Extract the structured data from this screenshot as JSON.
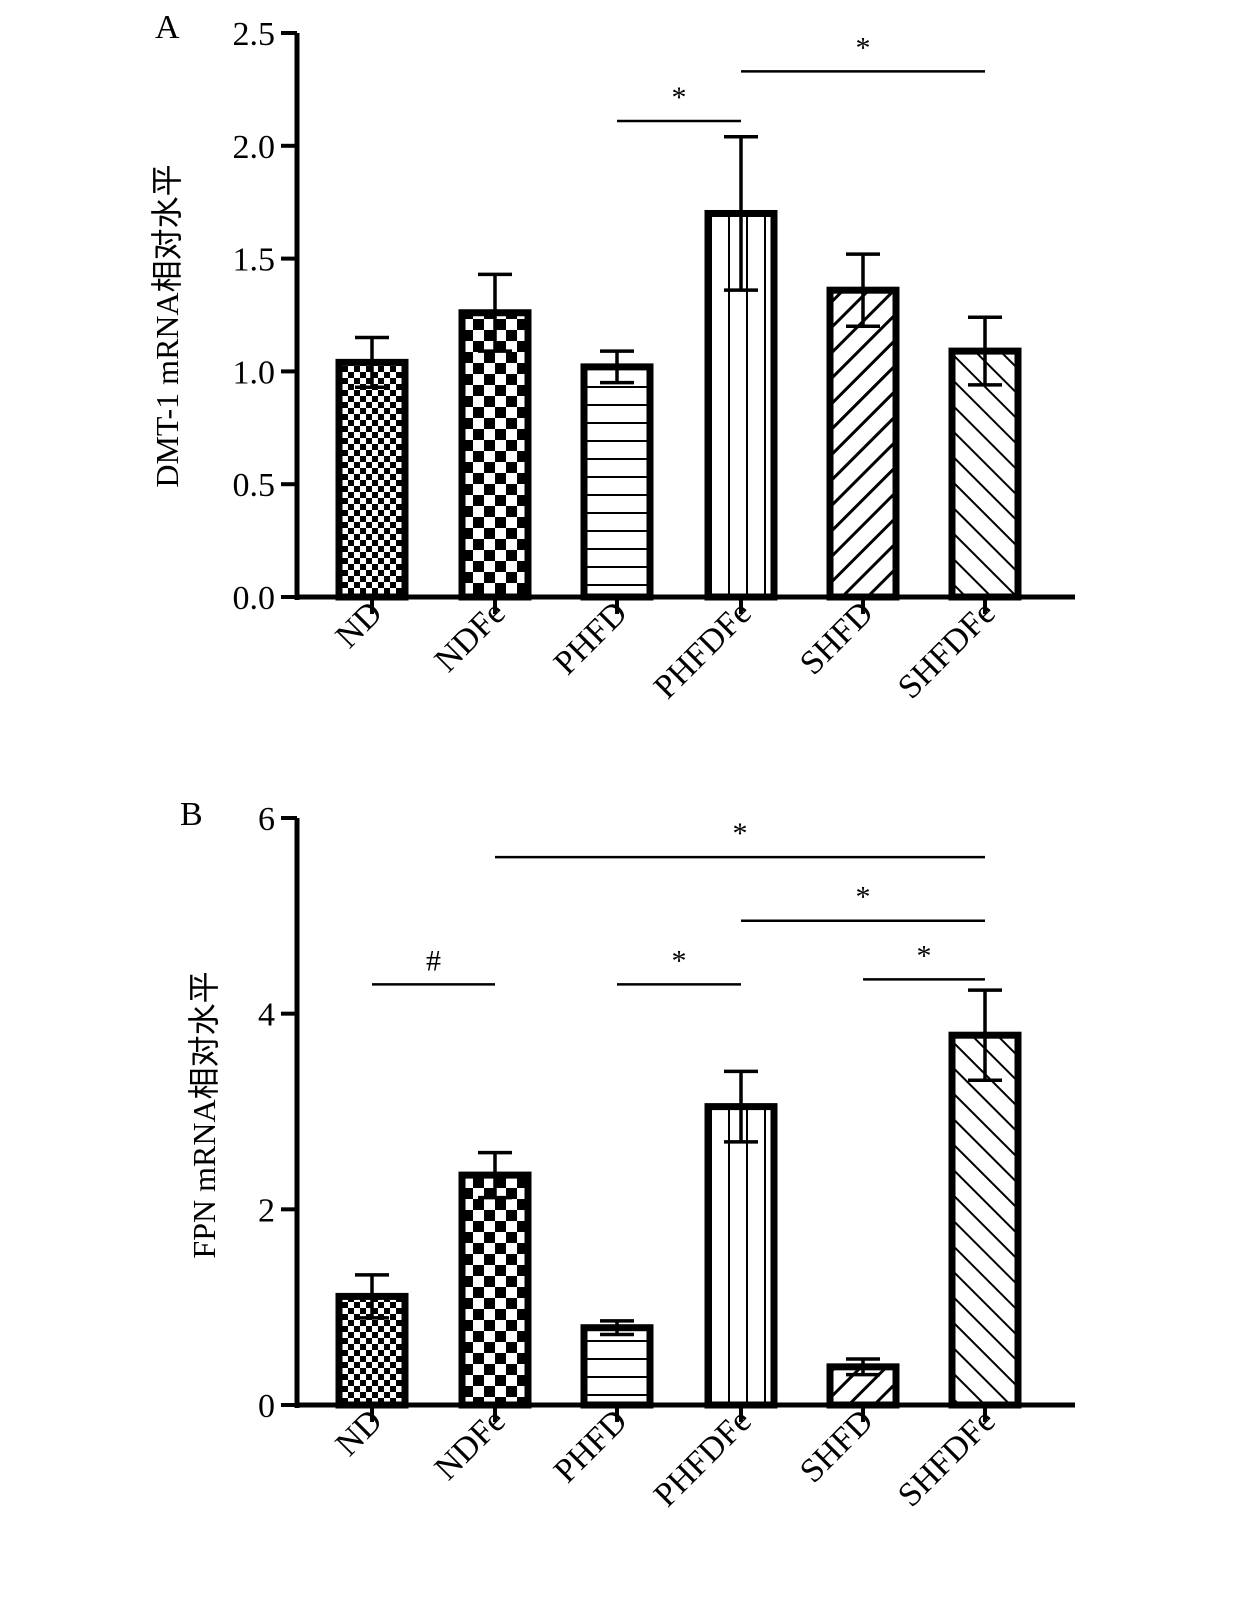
{
  "colors": {
    "ink": "#000000",
    "fill": "#ffffff"
  },
  "chart_data": [
    {
      "panel_label": "A",
      "type": "bar",
      "title": "",
      "xlabel": "",
      "ylabel": "DMT-1 mRNA相对水平",
      "categories": [
        "ND",
        "NDFe",
        "PHFD",
        "PHFDFe",
        "SHFD",
        "SHFDFe"
      ],
      "patterns": [
        "small-checker",
        "large-checker",
        "horizontal-lines",
        "vertical-lines",
        "diagonal-lines",
        "diagonal-lines-reverse"
      ],
      "values": [
        1.04,
        1.26,
        1.02,
        1.7,
        1.36,
        1.09
      ],
      "errors": [
        0.11,
        0.17,
        0.07,
        0.34,
        0.16,
        0.15
      ],
      "ylim": [
        0,
        2.5
      ],
      "yticks": [
        "0.0",
        "0.5",
        "1.0",
        "1.5",
        "2.0",
        "2.5"
      ],
      "grid": false,
      "significance": [
        {
          "from": "PHFD",
          "to": "PHFDFe",
          "label": "*",
          "y": 2.11
        },
        {
          "from": "PHFDFe",
          "to": "SHFDFe",
          "label": "*",
          "y": 2.33
        }
      ]
    },
    {
      "panel_label": "B",
      "type": "bar",
      "title": "",
      "xlabel": "",
      "ylabel": "FPN mRNA相对水平",
      "categories": [
        "ND",
        "NDFe",
        "PHFD",
        "PHFDFe",
        "SHFD",
        "SHFDFe"
      ],
      "patterns": [
        "small-checker",
        "large-checker",
        "horizontal-lines",
        "vertical-lines",
        "diagonal-lines",
        "diagonal-lines-reverse"
      ],
      "values": [
        1.11,
        2.35,
        0.79,
        3.05,
        0.39,
        3.78
      ],
      "errors": [
        0.22,
        0.23,
        0.07,
        0.36,
        0.08,
        0.46
      ],
      "ylim": [
        0,
        6
      ],
      "yticks": [
        "0",
        "2",
        "4",
        "6"
      ],
      "grid": false,
      "significance": [
        {
          "from": "ND",
          "to": "NDFe",
          "label": "#",
          "y": 4.3
        },
        {
          "from": "PHFD",
          "to": "PHFDFe",
          "label": "*",
          "y": 4.3
        },
        {
          "from": "SHFD",
          "to": "SHFDFe",
          "label": "*",
          "y": 4.35
        },
        {
          "from": "PHFDFe",
          "to": "SHFDFe",
          "label": "*",
          "y": 4.95
        },
        {
          "from": "NDFe",
          "to": "SHFDFe",
          "label": "*",
          "y": 5.6
        }
      ]
    }
  ]
}
